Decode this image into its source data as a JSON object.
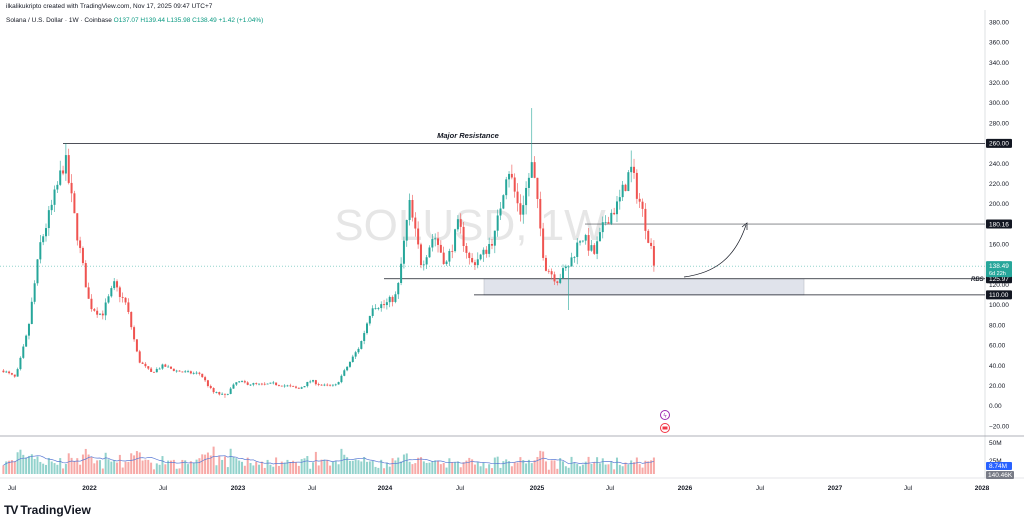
{
  "header": {
    "attribution": "ilkalikukripto created with TradingView.com, Nov 17, 2025 09:47 UTC+7"
  },
  "symbol_bar": {
    "name": "Solana / U.S. Dollar · 1W · Coinbase",
    "open": "O137.07",
    "high": "H139.44",
    "low": "L135.98",
    "close": "C138.49",
    "change": "+1.42 (+1.04%)"
  },
  "watermark": "SOLUSD, 1W",
  "annotations": {
    "major_resistance": "Major Resistance",
    "rbs": "RBS"
  },
  "price_tags": {
    "resistance": "260.00",
    "level_180": "180.16",
    "current": "138.49",
    "countdown": "6d 22h",
    "level_126": "125.97",
    "level_110": "110.00"
  },
  "volume_tags": {
    "max": "50M",
    "mid": "25M",
    "vol_a": "8.74M",
    "vol_b": "140.46K"
  },
  "footer": {
    "brand": "TradingView",
    "logo": "TV"
  },
  "colors": {
    "up": "#26a69a",
    "down": "#ef5350",
    "level_line": "#131722",
    "zone_fill": "#e0e3eb",
    "vol_ma": "#5b7bd5"
  },
  "chart_data": {
    "type": "candlestick",
    "title": "",
    "series_name": "SOLUSD",
    "timeframe": "1W",
    "ylim": [
      -25,
      385
    ],
    "y_ticks": [
      -20,
      0,
      20,
      40,
      60,
      80,
      100,
      120,
      140,
      160,
      180,
      200,
      220,
      240,
      260,
      280,
      300,
      320,
      340,
      360,
      380
    ],
    "x_tick_labels": [
      "Jul",
      "2022",
      "Jul",
      "2023",
      "Jul",
      "2024",
      "Jul",
      "2025",
      "Jul",
      "2026",
      "Jul",
      "2027",
      "Jul",
      "2028"
    ],
    "x_tick_labels_bold": [
      "2022",
      "2023",
      "2024",
      "2025",
      "2026",
      "2027",
      "2028"
    ],
    "horizontal_levels": [
      260,
      180.16,
      125.97,
      110
    ],
    "support_zone": [
      110,
      125.97
    ],
    "grid": false,
    "close_path": [
      {
        "x": "2021-06",
        "y": 35
      },
      {
        "x": "2021-07",
        "y": 28
      },
      {
        "x": "2021-08",
        "y": 75
      },
      {
        "x": "2021-09",
        "y": 160
      },
      {
        "x": "2021-10",
        "y": 200
      },
      {
        "x": "2021-11",
        "y": 245
      },
      {
        "x": "2021-12",
        "y": 170
      },
      {
        "x": "2022-01",
        "y": 100
      },
      {
        "x": "2022-02",
        "y": 90
      },
      {
        "x": "2022-03",
        "y": 120
      },
      {
        "x": "2022-04",
        "y": 100
      },
      {
        "x": "2022-05",
        "y": 45
      },
      {
        "x": "2022-06",
        "y": 33
      },
      {
        "x": "2022-07",
        "y": 40
      },
      {
        "x": "2022-08",
        "y": 35
      },
      {
        "x": "2022-09",
        "y": 33
      },
      {
        "x": "2022-10",
        "y": 32
      },
      {
        "x": "2022-11",
        "y": 14
      },
      {
        "x": "2022-12",
        "y": 10
      },
      {
        "x": "2023-01",
        "y": 24
      },
      {
        "x": "2023-02",
        "y": 22
      },
      {
        "x": "2023-03",
        "y": 21
      },
      {
        "x": "2023-04",
        "y": 22
      },
      {
        "x": "2023-05",
        "y": 20
      },
      {
        "x": "2023-06",
        "y": 17
      },
      {
        "x": "2023-07",
        "y": 25
      },
      {
        "x": "2023-08",
        "y": 20
      },
      {
        "x": "2023-09",
        "y": 20
      },
      {
        "x": "2023-10",
        "y": 40
      },
      {
        "x": "2023-11",
        "y": 60
      },
      {
        "x": "2023-12",
        "y": 100
      },
      {
        "x": "2024-01",
        "y": 100
      },
      {
        "x": "2024-02",
        "y": 110
      },
      {
        "x": "2024-03",
        "y": 200
      },
      {
        "x": "2024-04",
        "y": 140
      },
      {
        "x": "2024-05",
        "y": 170
      },
      {
        "x": "2024-06",
        "y": 140
      },
      {
        "x": "2024-07",
        "y": 180
      },
      {
        "x": "2024-08",
        "y": 140
      },
      {
        "x": "2024-09",
        "y": 150
      },
      {
        "x": "2024-10",
        "y": 170
      },
      {
        "x": "2024-11",
        "y": 240
      },
      {
        "x": "2024-12",
        "y": 190
      },
      {
        "x": "2025-01",
        "y": 240
      },
      {
        "x": "2025-02",
        "y": 140
      },
      {
        "x": "2025-03",
        "y": 125
      },
      {
        "x": "2025-04",
        "y": 140
      },
      {
        "x": "2025-05",
        "y": 170
      },
      {
        "x": "2025-06",
        "y": 150
      },
      {
        "x": "2025-07",
        "y": 185
      },
      {
        "x": "2025-08",
        "y": 200
      },
      {
        "x": "2025-09",
        "y": 235
      },
      {
        "x": "2025-10",
        "y": 190
      },
      {
        "x": "2025-11",
        "y": 138.49
      }
    ],
    "notable_highs": [
      {
        "x": "2021-11",
        "y": 260
      },
      {
        "x": "2025-01",
        "y": 295
      },
      {
        "x": "2025-09",
        "y": 253
      }
    ],
    "notable_lows": [
      {
        "x": "2022-12",
        "y": 8
      },
      {
        "x": "2025-04",
        "y": 95
      }
    ],
    "projection": {
      "from": {
        "x": "2025-11",
        "y": 135
      },
      "to": {
        "x": "2026-01",
        "y": 180
      }
    }
  }
}
